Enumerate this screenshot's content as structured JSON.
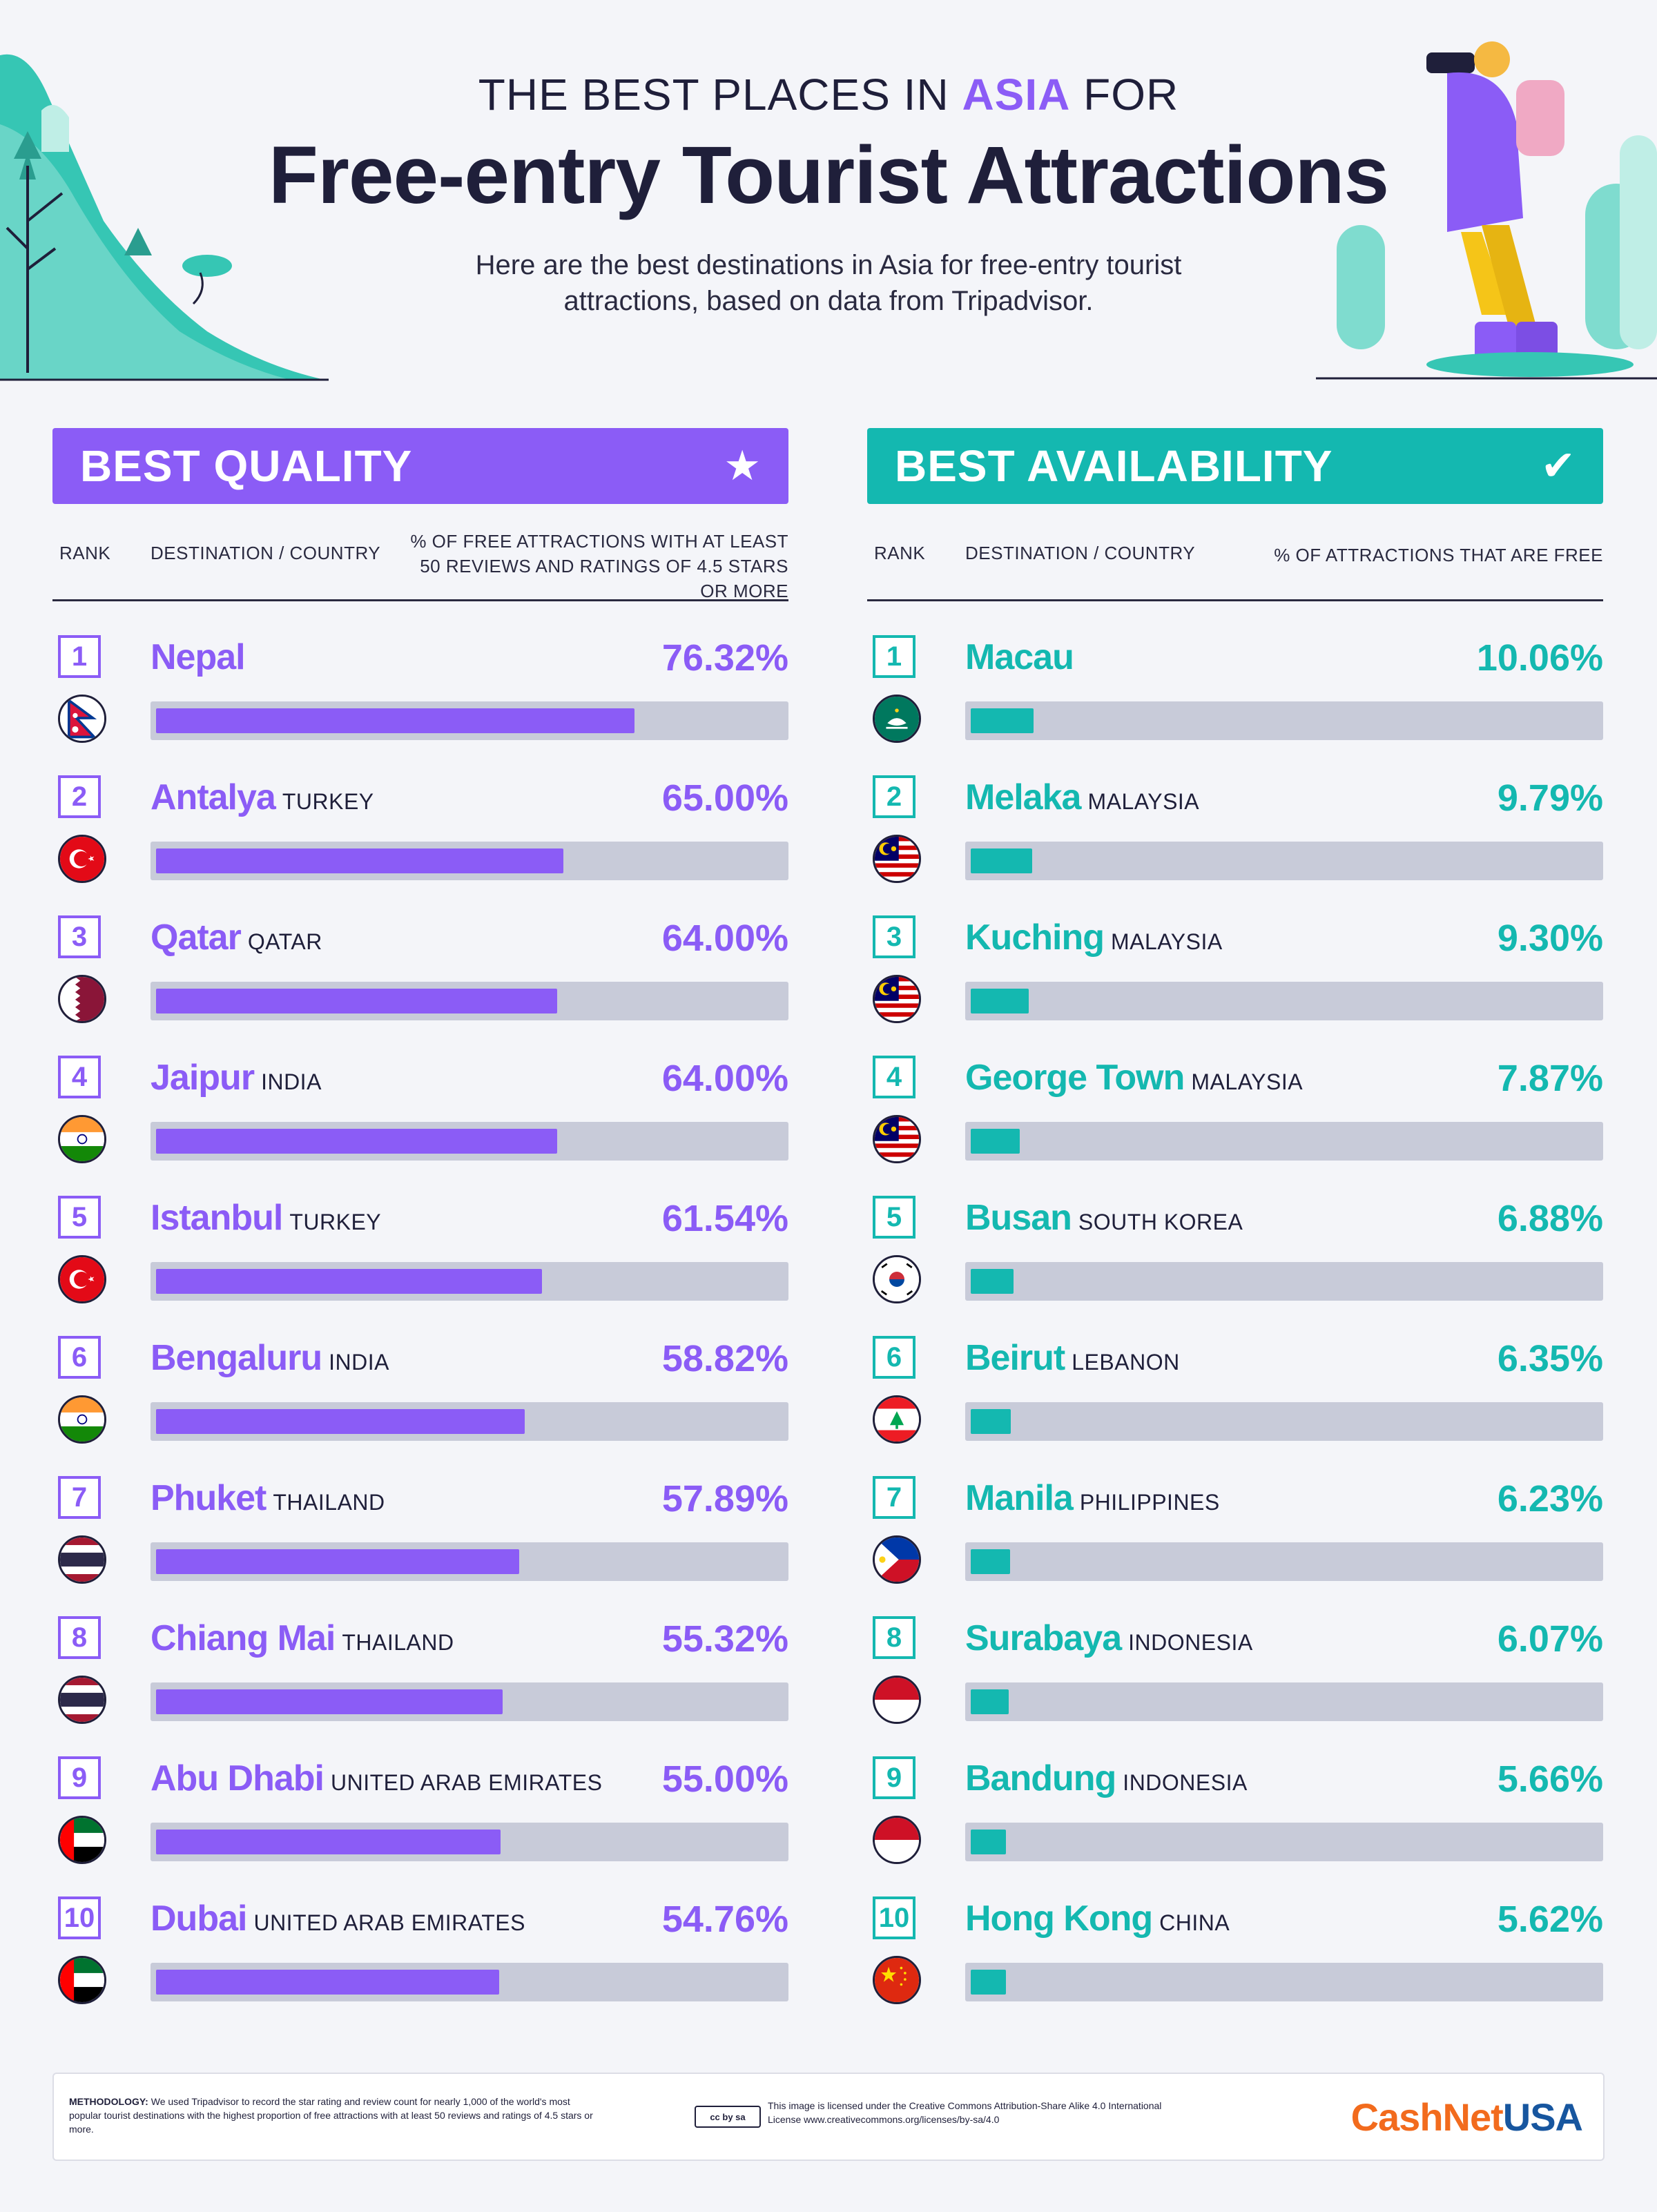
{
  "header": {
    "kicker_pre": "THE BEST PLACES IN",
    "kicker_accent": "ASIA",
    "kicker_post": "FOR",
    "headline": "Free-entry Tourist Attractions",
    "intro": "Here are the best destinations in Asia for free-entry tourist attractions, based on data from Tripadvisor."
  },
  "colors": {
    "purple": "#8b5cf6",
    "teal": "#14b8b0",
    "track": "#c8cbd9",
    "text": "#1f1f3a"
  },
  "panels": {
    "quality": {
      "title": "BEST QUALITY",
      "icon": "star-icon",
      "col_rank": "RANK",
      "col_dest": "DESTINATION / COUNTRY",
      "col_metric": "% OF FREE ATTRACTIONS WITH AT LEAST 50 REVIEWS AND RATINGS OF 4.5 STARS OR MORE"
    },
    "availability": {
      "title": "BEST AVAILABILITY",
      "icon": "check-icon",
      "col_rank": "RANK",
      "col_dest": "DESTINATION / COUNTRY",
      "col_metric": "% OF ATTRACTIONS THAT ARE FREE"
    }
  },
  "chart_data": [
    {
      "type": "bar",
      "title": "BEST QUALITY",
      "orientation": "horizontal",
      "xlim": [
        0,
        100
      ],
      "ranks": [
        "1",
        "2",
        "3",
        "4",
        "5",
        "6",
        "7",
        "8",
        "9",
        "10"
      ],
      "categories": [
        "Nepal",
        "Antalya",
        "Qatar",
        "Jaipur",
        "Istanbul",
        "Bengaluru",
        "Phuket",
        "Chiang Mai",
        "Abu Dhabi",
        "Dubai"
      ],
      "countries": [
        "",
        "TURKEY",
        "QATAR",
        "INDIA",
        "TURKEY",
        "INDIA",
        "THAILAND",
        "THAILAND",
        "UNITED ARAB EMIRATES",
        "UNITED ARAB EMIRATES"
      ],
      "flags": [
        "nepal",
        "turkey",
        "qatar",
        "india",
        "turkey",
        "india",
        "thailand",
        "thailand",
        "uae",
        "uae"
      ],
      "values": [
        76.32,
        65.0,
        64.0,
        64.0,
        61.54,
        58.82,
        57.89,
        55.32,
        55.0,
        54.76
      ],
      "labels": [
        "76.32%",
        "65.00%",
        "64.00%",
        "64.00%",
        "61.54%",
        "58.82%",
        "57.89%",
        "55.32%",
        "55.00%",
        "54.76%"
      ]
    },
    {
      "type": "bar",
      "title": "BEST AVAILABILITY",
      "orientation": "horizontal",
      "xlim": [
        0,
        100
      ],
      "ranks": [
        "1",
        "2",
        "3",
        "4",
        "5",
        "6",
        "7",
        "8",
        "9",
        "10"
      ],
      "categories": [
        "Macau",
        "Melaka",
        "Kuching",
        "George Town",
        "Busan",
        "Beirut",
        "Manila",
        "Surabaya",
        "Bandung",
        "Hong Kong"
      ],
      "countries": [
        "",
        "MALAYSIA",
        "MALAYSIA",
        "MALAYSIA",
        "SOUTH KOREA",
        "LEBANON",
        "PHILIPPINES",
        "INDONESIA",
        "INDONESIA",
        "CHINA"
      ],
      "flags": [
        "macau",
        "malaysia",
        "malaysia",
        "malaysia",
        "southkorea",
        "lebanon",
        "philippines",
        "indonesia",
        "indonesia",
        "china"
      ],
      "values": [
        10.06,
        9.79,
        9.3,
        7.87,
        6.88,
        6.35,
        6.23,
        6.07,
        5.66,
        5.62
      ],
      "labels": [
        "10.06%",
        "9.79%",
        "9.30%",
        "7.87%",
        "6.88%",
        "6.35%",
        "6.23%",
        "6.07%",
        "5.66%",
        "5.62%"
      ]
    }
  ],
  "footer": {
    "method_label": "METHODOLOGY:",
    "method_text": "We used Tripadvisor to record the star rating and review count for nearly 1,000 of the world's most popular tourist destinations with the highest proportion of free attractions with at least 50 reviews and ratings of 4.5 stars or more.",
    "cc_badge": "cc by sa",
    "license": "This image is licensed under the Creative Commons Attribution-Share Alike 4.0 International License www.creativecommons.org/licenses/by-sa/4.0",
    "brand_a": "CashNet",
    "brand_b": "USA"
  }
}
